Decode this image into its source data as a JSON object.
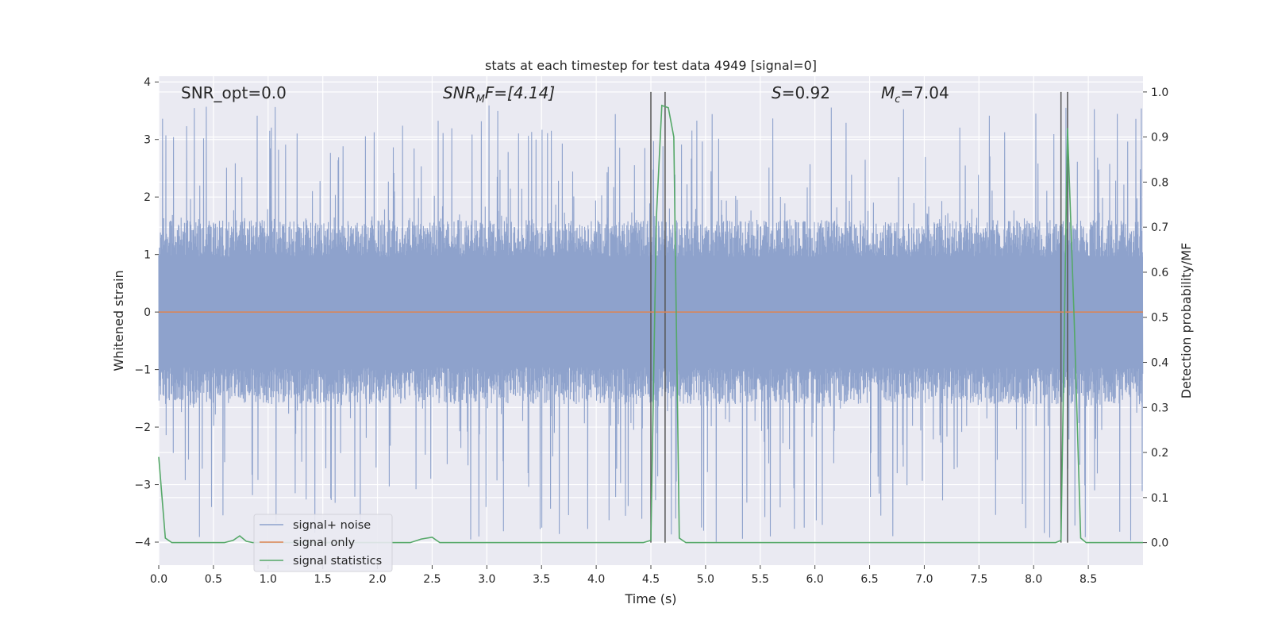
{
  "chart_data": {
    "type": "line",
    "title": "stats at each timestep for test data 4949 [signal=0]",
    "xlabel": "Time (s)",
    "ylabel": "Whitened strain",
    "ylabel_right": "Detection probability/MF",
    "xlim": [
      0.0,
      9.0
    ],
    "ylim": [
      -4.4,
      4.1
    ],
    "ylim_right": [
      -0.05,
      1.035
    ],
    "x_ticks": [
      "0.0",
      "0.5",
      "1.0",
      "1.5",
      "2.0",
      "2.5",
      "3.0",
      "3.5",
      "4.0",
      "4.5",
      "5.0",
      "5.5",
      "6.0",
      "6.5",
      "7.0",
      "7.5",
      "8.0",
      "8.5"
    ],
    "y_ticks": [
      "−4",
      "−3",
      "−2",
      "−1",
      "0",
      "1",
      "2",
      "3",
      "4"
    ],
    "y_ticks_right": [
      "0.0",
      "0.1",
      "0.2",
      "0.3",
      "0.4",
      "0.5",
      "0.6",
      "0.7",
      "0.8",
      "0.9",
      "1.0"
    ],
    "grid": true,
    "legend_position": "lower-left",
    "annotations": {
      "snr_opt": "SNR_opt=0.0",
      "snr_mf_main": "SNR",
      "snr_mf_sub": "M",
      "snr_mf_rest": "F=[4.14]",
      "s_main": "S",
      "s_rest": "=0.92",
      "mc_main": "M",
      "mc_sub": "c",
      "mc_rest": "=7.04"
    },
    "vlines": [
      4.5,
      4.63,
      8.25,
      8.31
    ],
    "noise_band": {
      "base_low": -1.6,
      "base_high": 1.6,
      "spike_max": 3.6,
      "spike_min": -4.0,
      "dt": 0.0025
    },
    "series": [
      {
        "name": "signal+ noise",
        "color": "#8ea2cc",
        "axis": "left",
        "description_points": "dense whitened strain noise, about ±1.6 with spikes up to 3.6 and down to -4.0"
      },
      {
        "name": "signal only",
        "color": "#dd8452",
        "axis": "left",
        "x": [
          0.0,
          9.0
        ],
        "y": [
          0.0,
          0.0
        ]
      },
      {
        "name": "signal statistics",
        "color": "#55a868",
        "axis": "right",
        "x": [
          0.0,
          0.06,
          0.12,
          0.6,
          0.68,
          0.74,
          0.8,
          0.86,
          2.3,
          2.4,
          2.5,
          2.57,
          2.63,
          4.43,
          4.5,
          4.55,
          4.6,
          4.66,
          4.71,
          4.76,
          4.82,
          8.2,
          8.25,
          8.31,
          8.37,
          8.43,
          8.48,
          9.0
        ],
        "y": [
          0.19,
          0.01,
          0.0,
          0.0,
          0.005,
          0.015,
          0.003,
          0.0,
          0.0,
          0.008,
          0.012,
          0.0,
          0.0,
          0.0,
          0.005,
          0.72,
          0.97,
          0.965,
          0.9,
          0.01,
          0.0,
          0.0,
          0.005,
          0.92,
          0.5,
          0.01,
          0.0,
          0.0
        ]
      }
    ]
  }
}
